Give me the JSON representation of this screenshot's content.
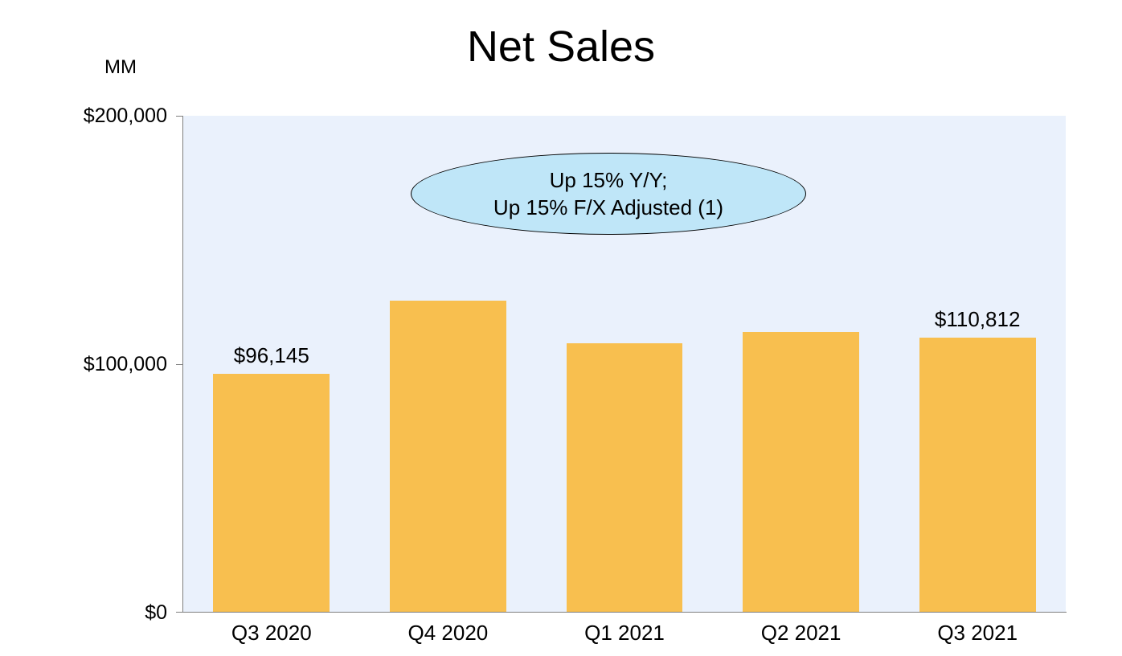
{
  "chart_data": {
    "type": "bar",
    "title": "Net Sales",
    "unit_label": "MM",
    "categories": [
      "Q3 2020",
      "Q4 2020",
      "Q1 2021",
      "Q2 2021",
      "Q3 2021"
    ],
    "values": [
      96145,
      125555,
      108518,
      113080,
      110812
    ],
    "data_labels": [
      "$96,145",
      "",
      "",
      "",
      "$110,812"
    ],
    "ylim": [
      0,
      200000
    ],
    "yticks": [
      {
        "value": 0,
        "label": "$0"
      },
      {
        "value": 100000,
        "label": "$100,000"
      },
      {
        "value": 200000,
        "label": "$200,000"
      }
    ],
    "annotation": [
      "Up 15% Y/Y;",
      "Up 15% F/X Adjusted (1)"
    ],
    "grid": false,
    "colors": {
      "bar": "#f8bf4f",
      "plot_background": "#eaf1fc",
      "callout_fill": "#bfe6f8"
    }
  }
}
